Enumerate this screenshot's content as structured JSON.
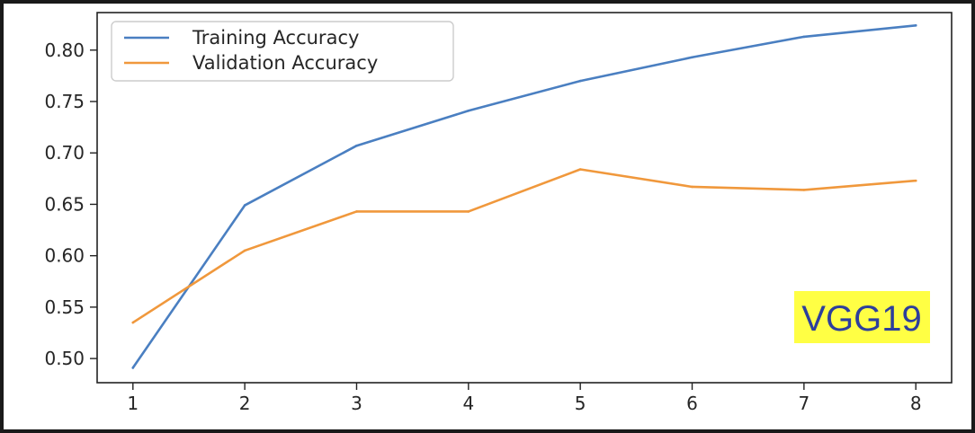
{
  "chart_data": {
    "type": "line",
    "x": [
      1,
      2,
      3,
      4,
      5,
      6,
      7,
      8
    ],
    "xlim": [
      0.68,
      8.32
    ],
    "ylim": [
      0.4765,
      0.8365
    ],
    "xticks": [
      1,
      2,
      3,
      4,
      5,
      6,
      7,
      8
    ],
    "xtick_labels": [
      "1",
      "2",
      "3",
      "4",
      "5",
      "6",
      "7",
      "8"
    ],
    "yticks": [
      0.5,
      0.55,
      0.6,
      0.65,
      0.7,
      0.75,
      0.8
    ],
    "ytick_labels": [
      "0.50",
      "0.55",
      "0.60",
      "0.65",
      "0.70",
      "0.75",
      "0.80"
    ],
    "grid": false,
    "legend_position": "top-left",
    "series": [
      {
        "name": "Training Accuracy",
        "color": "#4a7fc1",
        "values": [
          0.491,
          0.649,
          0.707,
          0.741,
          0.77,
          0.793,
          0.813,
          0.824
        ]
      },
      {
        "name": "Validation Accuracy",
        "color": "#f0983c",
        "values": [
          0.535,
          0.605,
          0.643,
          0.643,
          0.684,
          0.667,
          0.664,
          0.673
        ]
      }
    ],
    "annotation": {
      "text": "VGG19",
      "background": "#ffff44",
      "color": "#2d3e9c",
      "position": "bottom-right"
    }
  }
}
